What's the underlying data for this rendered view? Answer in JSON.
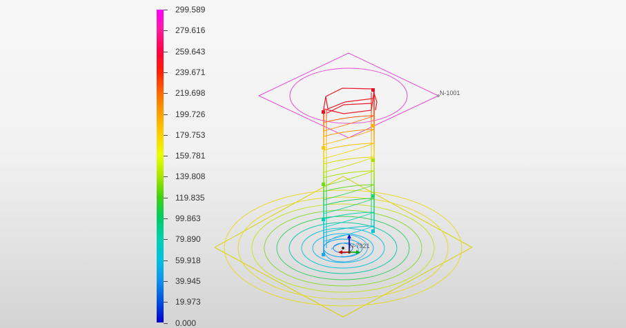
{
  "legend": {
    "labels": [
      "299.589",
      "279.616",
      "259.643",
      "239.671",
      "219.698",
      "199.726",
      "179.753",
      "159.781",
      "139.808",
      "119.835",
      "99.863",
      "79.890",
      "59.918",
      "39.945",
      "19.973",
      "0.000"
    ],
    "colors": [
      "#ff00ff",
      "#ff1a99",
      "#ff0040",
      "#ff2000",
      "#ff6a00",
      "#ffa000",
      "#ffd000",
      "#e6ff00",
      "#a8e600",
      "#40d010",
      "#00cc66",
      "#00d0b0",
      "#00c0e0",
      "#1090f0",
      "#0050e0",
      "#0000d0"
    ]
  },
  "viewport": {
    "node_labels": {
      "top": "N-1001",
      "base": "N-7921"
    }
  }
}
